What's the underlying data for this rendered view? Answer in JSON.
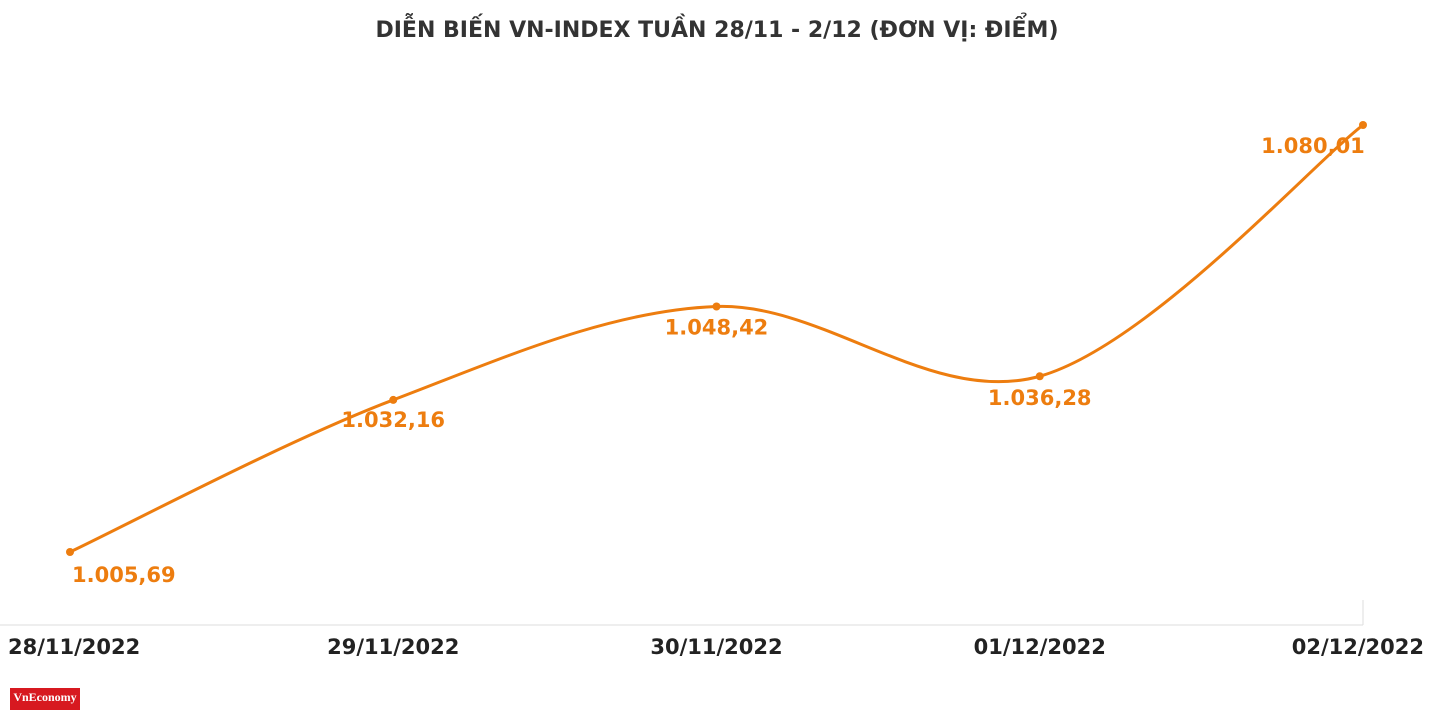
{
  "chart_data": {
    "type": "line",
    "title": "DIỄN BIẾN VN-INDEX TUẦN 28/11 - 2/12 (ĐƠN VỊ: ĐIỂM)",
    "categories": [
      "28/11/2022",
      "29/11/2022",
      "30/11/2022",
      "01/12/2022",
      "02/12/2022"
    ],
    "values": [
      1005.69,
      1032.16,
      1048.42,
      1036.28,
      1080.01
    ],
    "value_labels": [
      "1.005,69",
      "1.032,16",
      "1.048,42",
      "1.036,28",
      "1.080,01"
    ],
    "color": "#ed7d0f",
    "logo": "VnEconomy"
  }
}
